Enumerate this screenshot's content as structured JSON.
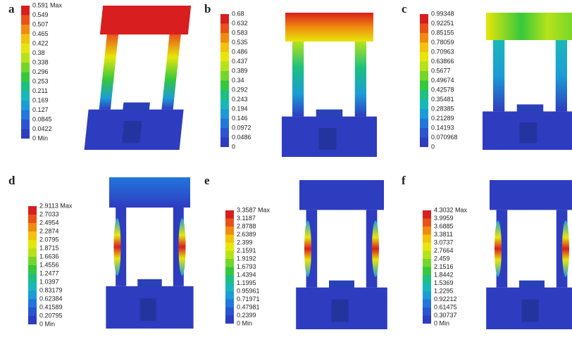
{
  "colormap": [
    "#d81e1e",
    "#e8521a",
    "#f08a10",
    "#f2c20c",
    "#e6e60a",
    "#b6e21a",
    "#74d62a",
    "#36c83c",
    "#1cc080",
    "#18b8b8",
    "#1c9cd6",
    "#2276dc",
    "#2a54d2",
    "#2e3cc0"
  ],
  "panels": [
    {
      "label": "a",
      "legend": [
        "0.591 Max",
        "0.549",
        "0.507",
        "0.465",
        "0.422",
        "0.38",
        "0.338",
        "0.296",
        "0.253",
        "0.211",
        "0.169",
        "0.127",
        "0.0845",
        "0.0422",
        "0 Min"
      ]
    },
    {
      "label": "b",
      "legend": [
        "0.68",
        "0.632",
        "0.583",
        "0.535",
        "0.486",
        "0.437",
        "0.389",
        "0.34",
        "0.292",
        "0.243",
        "0.194",
        "0.146",
        "0.0972",
        "0.0486",
        "0"
      ]
    },
    {
      "label": "c",
      "legend": [
        "0.99348",
        "0.92251",
        "0.85155",
        "0.78059",
        "0.70963",
        "0.63866",
        "0.5677",
        "0.49674",
        "0.42578",
        "0.35481",
        "0.28385",
        "0.21289",
        "0.14193",
        "0.070968",
        "0"
      ]
    },
    {
      "label": "d",
      "legend": [
        "2.9113 Max",
        "2.7033",
        "2.4954",
        "2.2874",
        "2.0795",
        "1.8715",
        "1.6636",
        "1.4556",
        "1.2477",
        "1.0397",
        "0.83179",
        "0.62384",
        "0.41589",
        "0.20795",
        "0 Min"
      ]
    },
    {
      "label": "e",
      "legend": [
        "3.3587 Max",
        "3.1187",
        "2.8788",
        "2.6389",
        "2.399",
        "2.1591",
        "1.9192",
        "1.6793",
        "1.4394",
        "1.1995",
        "0.95961",
        "0.71971",
        "0.47981",
        "0.2399",
        "0 Min"
      ]
    },
    {
      "label": "f",
      "legend": [
        "4.3032 Max",
        "3.9959",
        "3.6885",
        "3.3811",
        "3.0737",
        "2.7664",
        "2.459",
        "2.1516",
        "1.8442",
        "1.5369",
        "1.2295",
        "0.92212",
        "0.61475",
        "0.30737",
        "0 Min"
      ]
    }
  ]
}
